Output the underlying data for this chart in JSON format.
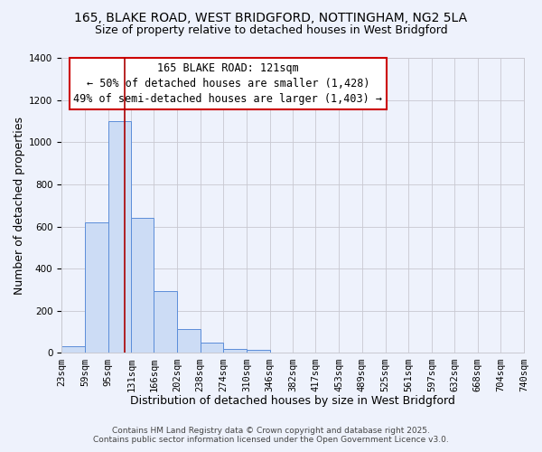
{
  "title1": "165, BLAKE ROAD, WEST BRIDGFORD, NOTTINGHAM, NG2 5LA",
  "title2": "Size of property relative to detached houses in West Bridgford",
  "xlabel": "Distribution of detached houses by size in West Bridgford",
  "ylabel": "Number of detached properties",
  "bin_labels": [
    "23sqm",
    "59sqm",
    "95sqm",
    "131sqm",
    "166sqm",
    "202sqm",
    "238sqm",
    "274sqm",
    "310sqm",
    "346sqm",
    "382sqm",
    "417sqm",
    "453sqm",
    "489sqm",
    "525sqm",
    "561sqm",
    "597sqm",
    "632sqm",
    "668sqm",
    "704sqm",
    "740sqm"
  ],
  "bar_values": [
    30,
    620,
    1100,
    640,
    295,
    115,
    50,
    20,
    15,
    0,
    0,
    0,
    0,
    0,
    0,
    0,
    0,
    0,
    0,
    0
  ],
  "bin_edges": [
    23,
    59,
    95,
    131,
    166,
    202,
    238,
    274,
    310,
    346,
    382,
    417,
    453,
    489,
    525,
    561,
    597,
    632,
    668,
    704,
    740
  ],
  "bar_color": "#ccdcf5",
  "bar_edge_color": "#5b8dd9",
  "grid_color": "#c8c8d0",
  "background_color": "#eef2fc",
  "vline_x": 121,
  "vline_color": "#aa0000",
  "annotation_text_line1": "165 BLAKE ROAD: 121sqm",
  "annotation_text_line2": "← 50% of detached houses are smaller (1,428)",
  "annotation_text_line3": "49% of semi-detached houses are larger (1,403) →",
  "annotation_box_color": "#ffffff",
  "annotation_box_edge_color": "#cc0000",
  "ylim": [
    0,
    1400
  ],
  "yticks": [
    0,
    200,
    400,
    600,
    800,
    1000,
    1200,
    1400
  ],
  "footer1": "Contains HM Land Registry data © Crown copyright and database right 2025.",
  "footer2": "Contains public sector information licensed under the Open Government Licence v3.0.",
  "title1_fontsize": 10,
  "title2_fontsize": 9,
  "axis_label_fontsize": 9,
  "tick_fontsize": 7.5,
  "annotation_fontsize": 8.5,
  "footer_fontsize": 6.5
}
